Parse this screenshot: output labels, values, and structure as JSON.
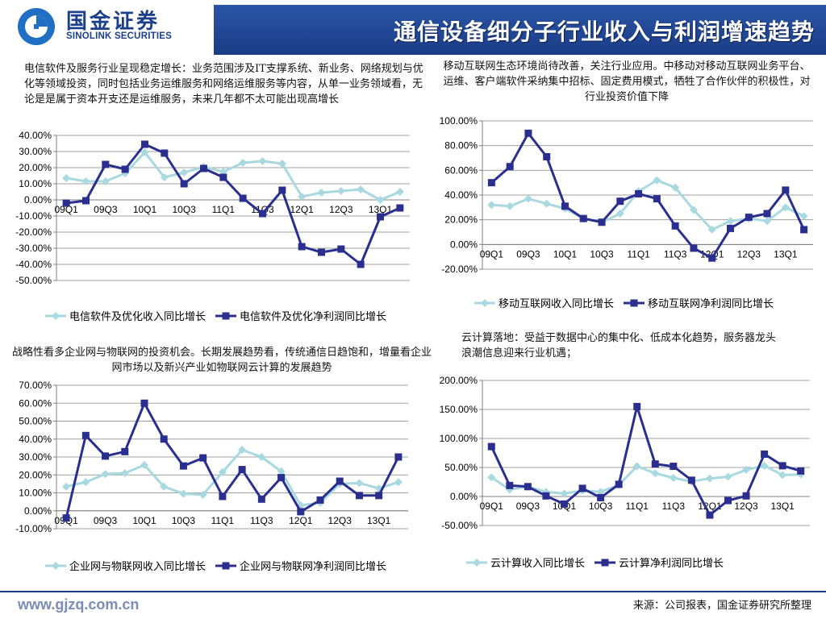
{
  "logo": {
    "name_cn": "国金证券",
    "name_en": "SINOLINK SECURITIES"
  },
  "header": {
    "title": "通信设备细分子行业收入与利润增速趋势"
  },
  "descriptions": [
    "电信软件及服务行业呈现稳定增长：业务范围涉及IT支撑系统、新业务、网络规划与优化等领域投资，同时包括业务运维服务和网络运维服务等内容，从单一业务领域看，无论是是属于资本开支还是运维服务，未来几年都不太可能出现高增长",
    "移动互联网生态环境尚待改善，关注行业应用。中移动对移动互联网业务平台、运维、客户端软件采纳集中招标、固定费用模式，牺牲了合作伙伴的积极性，对行业投资价值下降",
    "战略性看多企业网与物联网的投资机会。长期发展趋势看，传统通信日趋饱和，增量看企业网市场以及新兴产业如物联网云计算的发展趋势",
    "云计算落地：受益于数据中心的集中化、低成本化趋势，服务器龙头浪潮信息迎来行业机遇；"
  ],
  "chart_data": [
    {
      "type": "line",
      "x": [
        "09Q1",
        "09Q2",
        "09Q3",
        "09Q4",
        "10Q1",
        "10Q2",
        "10Q3",
        "10Q4",
        "11Q1",
        "11Q2",
        "11Q3",
        "11Q4",
        "12Q1",
        "12Q2",
        "12Q3",
        "12Q4",
        "13Q1",
        "13Q2"
      ],
      "tick_labels": [
        "09Q1",
        "09Q3",
        "10Q1",
        "10Q3",
        "11Q1",
        "11Q3",
        "12Q1",
        "12Q3",
        "13Q1"
      ],
      "ylim": [
        -50,
        40
      ],
      "y_step": 10,
      "grid": true,
      "legend": "bottom",
      "series": [
        {
          "name": "电信软件及优化收入同比增长",
          "color": "#a8d8e0",
          "marker": "diamond",
          "values": [
            13.5,
            11.5,
            11.5,
            16.5,
            29.5,
            14,
            17,
            20.5,
            17.5,
            23,
            24,
            22.5,
            2,
            4.5,
            5.5,
            6.5,
            0,
            5
          ]
        },
        {
          "name": "电信软件及优化净利润同比增长",
          "color": "#2a2f8f",
          "marker": "square",
          "values": [
            -2,
            -0.5,
            22,
            19,
            34.5,
            29,
            10,
            19.5,
            14,
            1,
            -8.5,
            6,
            -29,
            -32.5,
            -30.5,
            -40,
            -10.5,
            -5
          ]
        }
      ]
    },
    {
      "type": "line",
      "x": [
        "09Q1",
        "09Q2",
        "09Q3",
        "09Q4",
        "10Q1",
        "10Q2",
        "10Q3",
        "10Q4",
        "11Q1",
        "11Q2",
        "11Q3",
        "11Q4",
        "12Q1",
        "12Q2",
        "12Q3",
        "12Q4",
        "13Q1",
        "13Q2"
      ],
      "tick_labels": [
        "09Q1",
        "09Q3",
        "10Q1",
        "10Q3",
        "11Q1",
        "11Q3",
        "12Q1",
        "12Q3",
        "13Q1"
      ],
      "ylim": [
        -20,
        100
      ],
      "y_step": 20,
      "grid": true,
      "legend": "bottom",
      "series": [
        {
          "name": "移动互联网收入同比增长",
          "color": "#a8d8e0",
          "marker": "diamond",
          "values": [
            32,
            31,
            37,
            33,
            29,
            21,
            18,
            25,
            43,
            52,
            46,
            28,
            12,
            19,
            21,
            19,
            30,
            23
          ]
        },
        {
          "name": "移动互联网净利润同比增长",
          "color": "#2a2f8f",
          "marker": "square",
          "values": [
            50,
            63,
            90,
            71,
            31,
            21,
            18,
            35,
            41,
            37,
            15,
            -3,
            -11,
            13,
            22,
            25,
            44,
            12
          ]
        }
      ]
    },
    {
      "type": "line",
      "x": [
        "09Q1",
        "09Q2",
        "09Q3",
        "09Q4",
        "10Q1",
        "10Q2",
        "10Q3",
        "10Q4",
        "11Q1",
        "11Q2",
        "11Q3",
        "11Q4",
        "12Q1",
        "12Q2",
        "12Q3",
        "12Q4",
        "13Q1",
        "13Q2"
      ],
      "tick_labels": [
        "09Q1",
        "09Q3",
        "10Q1",
        "10Q3",
        "11Q1",
        "11Q3",
        "12Q1",
        "12Q3",
        "13Q1"
      ],
      "ylim": [
        -10,
        70
      ],
      "y_step": 10,
      "grid": true,
      "legend": "bottom",
      "series": [
        {
          "name": "企业网与物联网收入同比增长",
          "color": "#a8d8e0",
          "marker": "diamond",
          "values": [
            13.5,
            16,
            20.5,
            21,
            25.5,
            13.5,
            9.5,
            9,
            21.5,
            34,
            30,
            22,
            3,
            4.5,
            15,
            15.5,
            12.5,
            16
          ]
        },
        {
          "name": "企业网与物联网净利润同比增长",
          "color": "#2a2f8f",
          "marker": "square",
          "values": [
            -4,
            42,
            30.5,
            33,
            60,
            40,
            25,
            29.5,
            8,
            23,
            6.5,
            18.5,
            -0.5,
            6,
            16.5,
            8.5,
            8.5,
            30
          ]
        }
      ]
    },
    {
      "type": "line",
      "x": [
        "09Q1",
        "09Q2",
        "09Q3",
        "09Q4",
        "10Q1",
        "10Q2",
        "10Q3",
        "10Q4",
        "11Q1",
        "11Q2",
        "11Q3",
        "11Q4",
        "12Q1",
        "12Q2",
        "12Q3",
        "12Q4",
        "13Q1",
        "13Q2"
      ],
      "tick_labels": [
        "09Q1",
        "09Q3",
        "10Q1",
        "10Q3",
        "11Q1",
        "11Q3",
        "12Q1",
        "12Q3",
        "13Q1"
      ],
      "ylim": [
        -50,
        200
      ],
      "y_step": 50,
      "grid": true,
      "legend": "bottom",
      "series": [
        {
          "name": "云计算收入同比增长",
          "color": "#a8d8e0",
          "marker": "diamond",
          "values": [
            33,
            12,
            17,
            8,
            5,
            10,
            8,
            20,
            52,
            40,
            32,
            26,
            31,
            34,
            46,
            53,
            37,
            38
          ]
        },
        {
          "name": "云计算净利润同比增长",
          "color": "#2a2f8f",
          "marker": "square",
          "values": [
            86,
            19,
            17,
            1,
            -13,
            14,
            -2,
            21,
            155,
            56,
            52,
            28,
            -32,
            -7,
            1,
            73,
            53,
            44
          ]
        }
      ]
    }
  ],
  "footer": {
    "url": "www.gjzq.com.cn",
    "source": "来源：公司报表，国金证券研究所整理"
  }
}
